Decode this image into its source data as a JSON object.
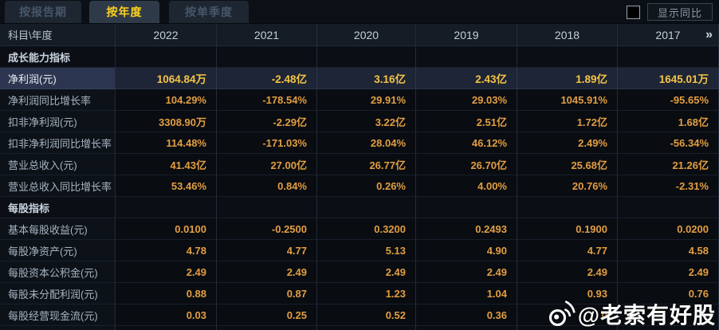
{
  "tabs": [
    {
      "label": "按报告期",
      "active": false
    },
    {
      "label": "按年度",
      "active": true
    },
    {
      "label": "按单季度",
      "active": false
    }
  ],
  "controls": {
    "show_yoy_label": "显示同比"
  },
  "table": {
    "corner_header": "科目\\年度",
    "years": [
      "2022",
      "2021",
      "2020",
      "2019",
      "2018",
      "2017"
    ],
    "more_years_icon": "»",
    "rows": [
      {
        "type": "section",
        "label": "成长能力指标",
        "values": [
          "",
          "",
          "",
          "",
          "",
          ""
        ]
      },
      {
        "type": "data",
        "highlight": true,
        "label": "净利润(元)",
        "values": [
          "1064.84万",
          "-2.48亿",
          "3.16亿",
          "2.43亿",
          "1.89亿",
          "1645.01万"
        ]
      },
      {
        "type": "data",
        "label": "净利润同比增长率",
        "values": [
          "104.29%",
          "-178.54%",
          "29.91%",
          "29.03%",
          "1045.91%",
          "-95.65%"
        ]
      },
      {
        "type": "data",
        "label": "扣非净利润(元)",
        "values": [
          "3308.90万",
          "-2.29亿",
          "3.22亿",
          "2.51亿",
          "1.72亿",
          "1.68亿"
        ]
      },
      {
        "type": "data",
        "label": "扣非净利润同比增长率",
        "values": [
          "114.48%",
          "-171.03%",
          "28.04%",
          "46.12%",
          "2.49%",
          "-56.34%"
        ]
      },
      {
        "type": "data",
        "label": "营业总收入(元)",
        "values": [
          "41.43亿",
          "27.00亿",
          "26.77亿",
          "26.70亿",
          "25.68亿",
          "21.26亿"
        ]
      },
      {
        "type": "data",
        "label": "营业总收入同比增长率",
        "values": [
          "53.46%",
          "0.84%",
          "0.26%",
          "4.00%",
          "20.76%",
          "-2.31%"
        ]
      },
      {
        "type": "section",
        "label": "每股指标",
        "values": [
          "",
          "",
          "",
          "",
          "",
          ""
        ]
      },
      {
        "type": "data",
        "label": "基本每股收益(元)",
        "values": [
          "0.0100",
          "-0.2500",
          "0.3200",
          "0.2493",
          "0.1900",
          "0.0200"
        ]
      },
      {
        "type": "data",
        "label": "每股净资产(元)",
        "values": [
          "4.78",
          "4.77",
          "5.13",
          "4.90",
          "4.77",
          "4.58"
        ]
      },
      {
        "type": "data",
        "label": "每股资本公积金(元)",
        "values": [
          "2.49",
          "2.49",
          "2.49",
          "2.49",
          "2.49",
          "2.49"
        ]
      },
      {
        "type": "data",
        "label": "每股未分配利润(元)",
        "values": [
          "0.88",
          "0.87",
          "1.23",
          "1.04",
          "0.93",
          "0.76"
        ]
      },
      {
        "type": "data",
        "label": "每股经营现金流(元)",
        "values": [
          "0.03",
          "0.25",
          "0.52",
          "0.36",
          "0",
          ""
        ]
      }
    ]
  },
  "watermark": {
    "handle": "@老索有好股"
  },
  "colors": {
    "accent_yellow": "#ffd21e",
    "value_orange": "#e29e41",
    "highlight_gold": "#f6c445",
    "header_text": "#c3ced9",
    "row_highlight_bg": "#2c3650"
  }
}
